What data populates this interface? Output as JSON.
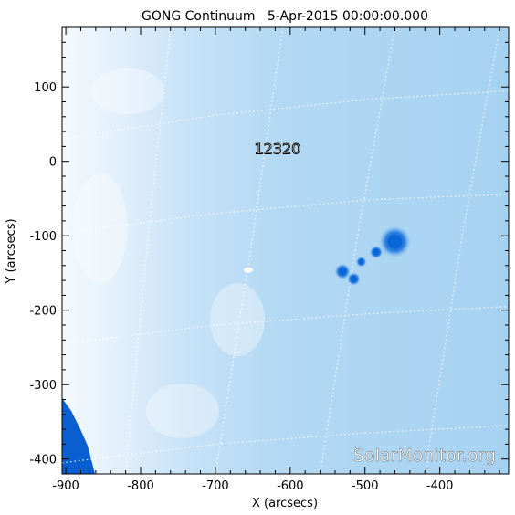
{
  "chart_data": {
    "type": "heatmap",
    "title": "GONG Continuum   5-Apr-2015 00:00:00.000",
    "xlabel": "X (arcsecs)",
    "ylabel": "Y (arcsecs)",
    "xlim": [
      -905,
      -308
    ],
    "ylim": [
      -420,
      180
    ],
    "x_ticks": [
      -900,
      -800,
      -700,
      -600,
      -500,
      -400
    ],
    "y_ticks": [
      100,
      0,
      -100,
      -200,
      -300,
      -400
    ],
    "grid": "heliographic dotted",
    "active_region": {
      "label": "12320",
      "x": -617,
      "y": 10
    },
    "sunspots": [
      {
        "x": -460,
        "y": -108,
        "r": 12
      },
      {
        "x": -485,
        "y": -122,
        "r": 5
      },
      {
        "x": -530,
        "y": -148,
        "r": 6
      },
      {
        "x": -515,
        "y": -158,
        "r": 5
      },
      {
        "x": -505,
        "y": -135,
        "r": 4
      }
    ],
    "bright_spot": {
      "x": -656,
      "y": -146
    },
    "colors": {
      "disk": "#a9d4f2",
      "limb": "#f7fbff",
      "spot": "#0a66d6",
      "offdisk": "#0a5fd0"
    }
  },
  "watermark": "SolarMonitor.org"
}
